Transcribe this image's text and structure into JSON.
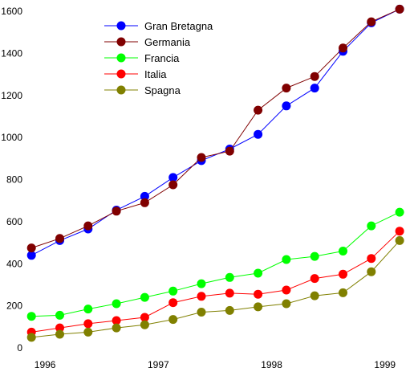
{
  "chart_data": {
    "type": "line",
    "title": "",
    "xlabel": "",
    "ylabel": "",
    "xlim": [
      1995.9,
      1999.2
    ],
    "ylim": [
      0,
      1600
    ],
    "x_ticks": [
      {
        "value": 1996,
        "label": "1996"
      },
      {
        "value": 1997,
        "label": "1997"
      },
      {
        "value": 1998,
        "label": "1998"
      },
      {
        "value": 1999,
        "label": "1999"
      }
    ],
    "y_ticks": [
      {
        "value": 0,
        "label": "0"
      },
      {
        "value": 200,
        "label": "200"
      },
      {
        "value": 400,
        "label": "400"
      },
      {
        "value": 600,
        "label": "600"
      },
      {
        "value": 800,
        "label": "800"
      },
      {
        "value": 1000,
        "label": "1000"
      },
      {
        "value": 1200,
        "label": "1200"
      },
      {
        "value": 1400,
        "label": "1400"
      },
      {
        "value": 1600,
        "label": "1600"
      }
    ],
    "x": [
      1995.88,
      1996.13,
      1996.38,
      1996.63,
      1996.88,
      1997.13,
      1997.38,
      1997.63,
      1997.88,
      1998.13,
      1998.38,
      1998.63,
      1998.88,
      1999.13
    ],
    "grid": false,
    "legend_position": "top-left",
    "series": [
      {
        "name": "Gran Bretagna",
        "color": "#0000ff",
        "values": [
          440,
          510,
          565,
          655,
          720,
          810,
          890,
          945,
          1015,
          1150,
          1235,
          1410,
          1545,
          1610
        ]
      },
      {
        "name": "Germania",
        "color": "#800000",
        "values": [
          475,
          520,
          580,
          650,
          690,
          775,
          905,
          935,
          1130,
          1235,
          1290,
          1425,
          1550,
          1610
        ]
      },
      {
        "name": "Francia",
        "color": "#00ff00",
        "values": [
          150,
          155,
          185,
          210,
          240,
          270,
          305,
          335,
          355,
          420,
          435,
          460,
          580,
          645
        ]
      },
      {
        "name": "Italia",
        "color": "#ff0000",
        "values": [
          75,
          95,
          115,
          130,
          145,
          215,
          245,
          260,
          255,
          275,
          330,
          350,
          425,
          555
        ]
      },
      {
        "name": "Spagna",
        "color": "#808000",
        "values": [
          50,
          65,
          75,
          95,
          110,
          135,
          170,
          178,
          195,
          210,
          248,
          262,
          362,
          510
        ]
      }
    ]
  }
}
